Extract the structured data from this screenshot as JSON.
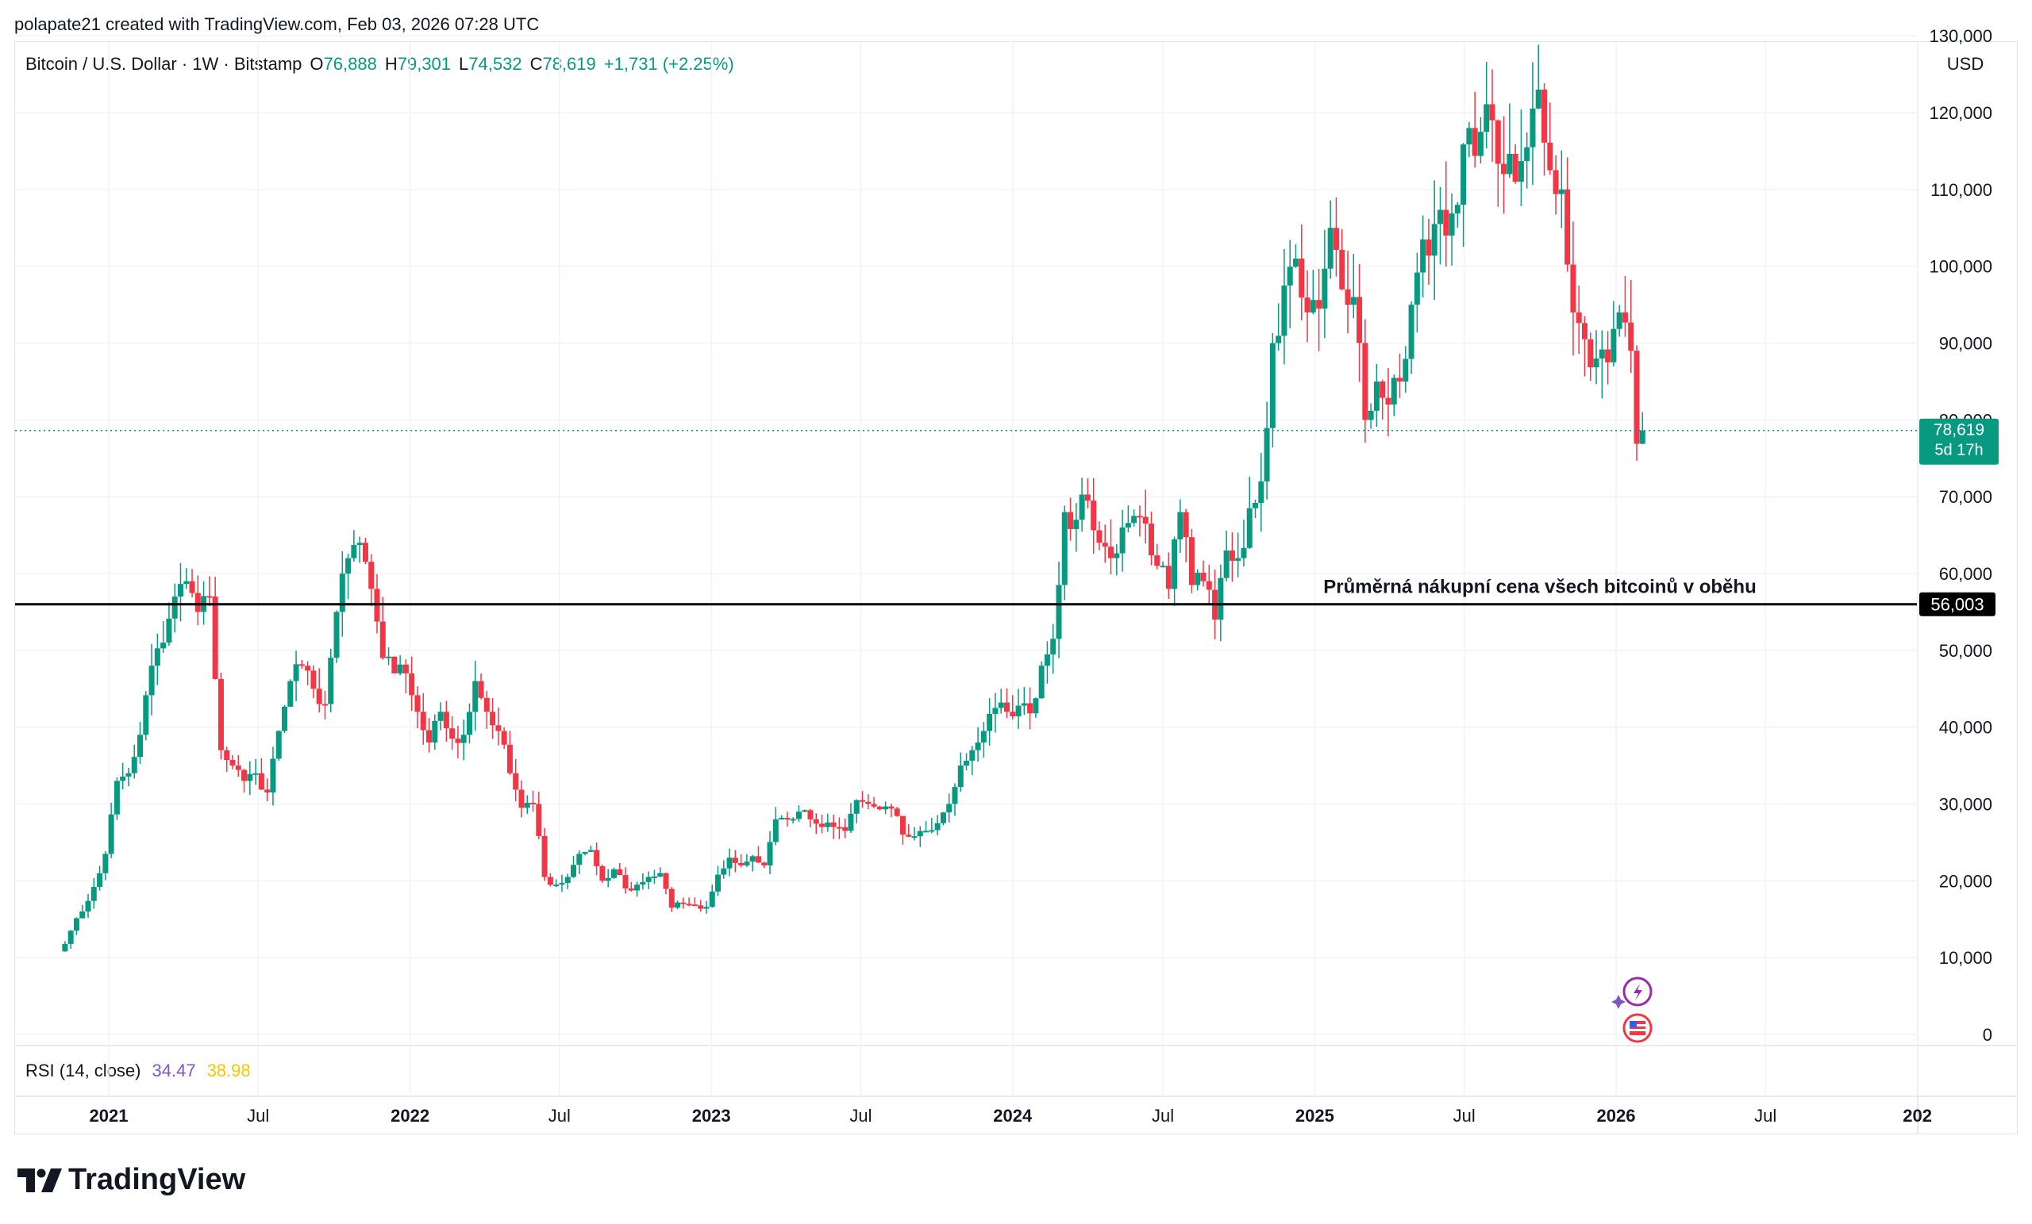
{
  "attribution": "polapate21 created with TradingView.com, Feb 03, 2026 07:28 UTC",
  "header": {
    "symbol": "Bitcoin / U.S. Dollar · 1W · Bitstamp",
    "open_label": "O",
    "open": "76,888",
    "high_label": "H",
    "high": "79,301",
    "low_label": "L",
    "low": "74,532",
    "close_label": "C",
    "close": "78,619",
    "change": "+1,731 (+2.25%)",
    "currency": "USD"
  },
  "rsi": {
    "label": "RSI (14, close)",
    "value1": "34.47",
    "value2": "38.98"
  },
  "brand": {
    "name": "TradingView"
  },
  "colors": {
    "up": "#089981",
    "down": "#f23645",
    "grid": "#f0f3fa",
    "annotation_line": "#000000"
  },
  "price_tag": {
    "value": "78,619",
    "countdown": "5d 17h"
  },
  "chart_data": {
    "type": "candlestick",
    "y_ticks": [
      "130,000",
      "120,000",
      "110,000",
      "100,000",
      "90,000",
      "80,000",
      "70,000",
      "60,000",
      "50,000",
      "40,000",
      "30,000",
      "20,000",
      "10,000",
      "0"
    ],
    "y_tick_values": [
      130000,
      120000,
      110000,
      100000,
      90000,
      80000,
      70000,
      60000,
      50000,
      40000,
      30000,
      20000,
      10000,
      0
    ],
    "ylim": [
      0,
      130000
    ],
    "x_ticks": [
      {
        "label": "2021",
        "date": "2021-01-01",
        "bold": true
      },
      {
        "label": "Jul",
        "date": "2021-07-01",
        "bold": false
      },
      {
        "label": "2022",
        "date": "2022-01-01",
        "bold": true
      },
      {
        "label": "Jul",
        "date": "2022-07-01",
        "bold": false
      },
      {
        "label": "2023",
        "date": "2023-01-01",
        "bold": true
      },
      {
        "label": "Jul",
        "date": "2023-07-01",
        "bold": false
      },
      {
        "label": "2024",
        "date": "2024-01-01",
        "bold": true
      },
      {
        "label": "Jul",
        "date": "2024-07-01",
        "bold": false
      },
      {
        "label": "2025",
        "date": "2025-01-01",
        "bold": true
      },
      {
        "label": "Jul",
        "date": "2025-07-01",
        "bold": false
      },
      {
        "label": "2026",
        "date": "2026-01-01",
        "bold": true
      },
      {
        "label": "Jul",
        "date": "2026-07-01",
        "bold": false
      },
      {
        "label": "202",
        "date": "2027-01-01",
        "bold": true
      }
    ],
    "horizontal_line": {
      "value": 56003,
      "label": "56,003",
      "annotation": "Průměrná nákupní cena všech bitcoinů v oběhu"
    },
    "current_price": 78619,
    "weekly_closes": [
      {
        "date": "2020-11-02",
        "close": 10800
      },
      {
        "date": "2020-11-16",
        "close": 13500
      },
      {
        "date": "2020-11-30",
        "close": 16000
      },
      {
        "date": "2020-12-14",
        "close": 19200
      },
      {
        "date": "2020-12-28",
        "close": 23500
      },
      {
        "date": "2021-01-11",
        "close": 33000
      },
      {
        "date": "2021-01-25",
        "close": 34000
      },
      {
        "date": "2021-02-08",
        "close": 39000
      },
      {
        "date": "2021-02-22",
        "close": 48000
      },
      {
        "date": "2021-03-08",
        "close": 51000
      },
      {
        "date": "2021-03-22",
        "close": 57000
      },
      {
        "date": "2021-04-05",
        "close": 59000
      },
      {
        "date": "2021-04-19",
        "close": 55000
      },
      {
        "date": "2021-05-03",
        "close": 57000
      },
      {
        "date": "2021-05-17",
        "close": 37000
      },
      {
        "date": "2021-05-31",
        "close": 35000
      },
      {
        "date": "2021-06-14",
        "close": 33000
      },
      {
        "date": "2021-06-28",
        "close": 34000
      },
      {
        "date": "2021-07-12",
        "close": 31500
      },
      {
        "date": "2021-07-26",
        "close": 39500
      },
      {
        "date": "2021-08-09",
        "close": 46000
      },
      {
        "date": "2021-08-23",
        "close": 48000
      },
      {
        "date": "2021-09-06",
        "close": 45000
      },
      {
        "date": "2021-09-20",
        "close": 43000
      },
      {
        "date": "2021-10-04",
        "close": 55000
      },
      {
        "date": "2021-10-18",
        "close": 62000
      },
      {
        "date": "2021-11-01",
        "close": 64000
      },
      {
        "date": "2021-11-15",
        "close": 58000
      },
      {
        "date": "2021-11-29",
        "close": 49000
      },
      {
        "date": "2021-12-13",
        "close": 47000
      },
      {
        "date": "2021-12-27",
        "close": 47000
      },
      {
        "date": "2022-01-10",
        "close": 42000
      },
      {
        "date": "2022-01-24",
        "close": 38000
      },
      {
        "date": "2022-02-07",
        "close": 42000
      },
      {
        "date": "2022-02-21",
        "close": 38500
      },
      {
        "date": "2022-03-07",
        "close": 39000
      },
      {
        "date": "2022-03-21",
        "close": 46000
      },
      {
        "date": "2022-04-04",
        "close": 42000
      },
      {
        "date": "2022-04-18",
        "close": 39500
      },
      {
        "date": "2022-05-02",
        "close": 34000
      },
      {
        "date": "2022-05-16",
        "close": 29500
      },
      {
        "date": "2022-05-30",
        "close": 30000
      },
      {
        "date": "2022-06-13",
        "close": 20500
      },
      {
        "date": "2022-06-27",
        "close": 19500
      },
      {
        "date": "2022-07-11",
        "close": 20500
      },
      {
        "date": "2022-07-25",
        "close": 23500
      },
      {
        "date": "2022-08-08",
        "close": 24000
      },
      {
        "date": "2022-08-22",
        "close": 20000
      },
      {
        "date": "2022-09-05",
        "close": 21500
      },
      {
        "date": "2022-09-19",
        "close": 19000
      },
      {
        "date": "2022-10-03",
        "close": 19500
      },
      {
        "date": "2022-10-17",
        "close": 20500
      },
      {
        "date": "2022-10-31",
        "close": 21000
      },
      {
        "date": "2022-11-14",
        "close": 16500
      },
      {
        "date": "2022-11-28",
        "close": 17000
      },
      {
        "date": "2022-12-12",
        "close": 16800
      },
      {
        "date": "2022-12-26",
        "close": 16600
      },
      {
        "date": "2023-01-09",
        "close": 20800
      },
      {
        "date": "2023-01-23",
        "close": 23000
      },
      {
        "date": "2023-02-06",
        "close": 22000
      },
      {
        "date": "2023-02-20",
        "close": 23200
      },
      {
        "date": "2023-03-06",
        "close": 22000
      },
      {
        "date": "2023-03-20",
        "close": 28000
      },
      {
        "date": "2023-04-03",
        "close": 28000
      },
      {
        "date": "2023-04-17",
        "close": 29000
      },
      {
        "date": "2023-05-01",
        "close": 28000
      },
      {
        "date": "2023-05-15",
        "close": 27000
      },
      {
        "date": "2023-05-29",
        "close": 27000
      },
      {
        "date": "2023-06-12",
        "close": 26500
      },
      {
        "date": "2023-06-26",
        "close": 30500
      },
      {
        "date": "2023-07-10",
        "close": 30000
      },
      {
        "date": "2023-07-24",
        "close": 29300
      },
      {
        "date": "2023-08-07",
        "close": 29400
      },
      {
        "date": "2023-08-21",
        "close": 26000
      },
      {
        "date": "2023-09-04",
        "close": 25800
      },
      {
        "date": "2023-09-18",
        "close": 26500
      },
      {
        "date": "2023-10-02",
        "close": 27500
      },
      {
        "date": "2023-10-16",
        "close": 30000
      },
      {
        "date": "2023-10-30",
        "close": 35000
      },
      {
        "date": "2023-11-13",
        "close": 37000
      },
      {
        "date": "2023-11-27",
        "close": 39500
      },
      {
        "date": "2023-12-11",
        "close": 42500
      },
      {
        "date": "2023-12-25",
        "close": 42000
      },
      {
        "date": "2024-01-08",
        "close": 42800
      },
      {
        "date": "2024-01-22",
        "close": 41800
      },
      {
        "date": "2024-02-05",
        "close": 48000
      },
      {
        "date": "2024-02-19",
        "close": 51500
      },
      {
        "date": "2024-03-04",
        "close": 68000
      },
      {
        "date": "2024-03-18",
        "close": 67000
      },
      {
        "date": "2024-04-01",
        "close": 69500
      },
      {
        "date": "2024-04-15",
        "close": 64000
      },
      {
        "date": "2024-04-29",
        "close": 62000
      },
      {
        "date": "2024-05-13",
        "close": 66000
      },
      {
        "date": "2024-05-27",
        "close": 67500
      },
      {
        "date": "2024-06-10",
        "close": 66500
      },
      {
        "date": "2024-06-24",
        "close": 61000
      },
      {
        "date": "2024-07-08",
        "close": 58000
      },
      {
        "date": "2024-07-22",
        "close": 68000
      },
      {
        "date": "2024-08-05",
        "close": 58500
      },
      {
        "date": "2024-08-19",
        "close": 59000
      },
      {
        "date": "2024-09-02",
        "close": 54000
      },
      {
        "date": "2024-09-16",
        "close": 63000
      },
      {
        "date": "2024-09-30",
        "close": 62000
      },
      {
        "date": "2024-10-14",
        "close": 68500
      },
      {
        "date": "2024-10-28",
        "close": 72000
      },
      {
        "date": "2024-11-11",
        "close": 90000
      },
      {
        "date": "2024-11-25",
        "close": 97500
      },
      {
        "date": "2024-12-09",
        "close": 101000
      },
      {
        "date": "2024-12-23",
        "close": 94000
      },
      {
        "date": "2025-01-06",
        "close": 94500
      },
      {
        "date": "2025-01-20",
        "close": 105000
      },
      {
        "date": "2025-02-03",
        "close": 97000
      },
      {
        "date": "2025-02-17",
        "close": 96000
      },
      {
        "date": "2025-03-03",
        "close": 80000
      },
      {
        "date": "2025-03-17",
        "close": 85000
      },
      {
        "date": "2025-03-31",
        "close": 82000
      },
      {
        "date": "2025-04-14",
        "close": 85000
      },
      {
        "date": "2025-04-28",
        "close": 95000
      },
      {
        "date": "2025-05-12",
        "close": 103500
      },
      {
        "date": "2025-05-26",
        "close": 105500
      },
      {
        "date": "2025-06-09",
        "close": 104000
      },
      {
        "date": "2025-06-23",
        "close": 108000
      },
      {
        "date": "2025-07-07",
        "close": 118000
      },
      {
        "date": "2025-07-21",
        "close": 117500
      },
      {
        "date": "2025-08-04",
        "close": 119000
      },
      {
        "date": "2025-08-18",
        "close": 112000
      },
      {
        "date": "2025-09-01",
        "close": 111000
      },
      {
        "date": "2025-09-15",
        "close": 115500
      },
      {
        "date": "2025-09-29",
        "close": 123000
      },
      {
        "date": "2025-10-13",
        "close": 112500
      },
      {
        "date": "2025-10-27",
        "close": 110000
      },
      {
        "date": "2025-11-10",
        "close": 94000
      },
      {
        "date": "2025-11-24",
        "close": 90500
      },
      {
        "date": "2025-12-08",
        "close": 88000
      },
      {
        "date": "2025-12-22",
        "close": 87500
      },
      {
        "date": "2026-01-05",
        "close": 94000
      },
      {
        "date": "2026-01-19",
        "close": 89000
      },
      {
        "date": "2026-01-26",
        "close": 76888
      },
      {
        "date": "2026-02-02",
        "close": 78619
      }
    ]
  }
}
